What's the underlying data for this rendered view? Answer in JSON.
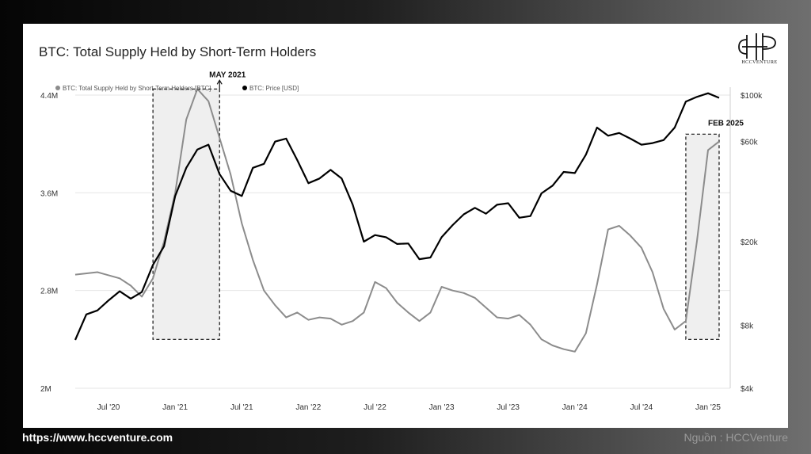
{
  "title": "BTC: Total Supply Held by Short-Term Holders",
  "logo": {
    "text": "HCCVENTURE",
    "icon": "hcc-monogram-icon"
  },
  "footer": {
    "url": "https://www.hccventure.com",
    "source": "Nguồn : HCCVenture"
  },
  "chart_data": {
    "type": "line",
    "title": "BTC: Total Supply Held by Short-Term Holders",
    "legend_position": "top-left",
    "grid": true,
    "x_range": [
      "2020-04",
      "2025-03"
    ],
    "x_ticks": [
      "Jul '20",
      "Jan '21",
      "Jul '21",
      "Jan '22",
      "Jul '22",
      "Jan '23",
      "Jul '23",
      "Jan '24",
      "Jul '24",
      "Jan '25"
    ],
    "y_left": {
      "ticks": [
        "2M",
        "2.8M",
        "3.6M",
        "4.4M"
      ],
      "tick_values": [
        2.0,
        2.8,
        3.6,
        4.4
      ],
      "range": [
        2.0,
        4.4
      ],
      "scale": "linear"
    },
    "y_right": {
      "ticks": [
        "$4k",
        "$8k",
        "$20k",
        "$60k",
        "$100k"
      ],
      "tick_values": [
        4000,
        8000,
        20000,
        60000,
        100000
      ],
      "range": [
        4000,
        100000
      ],
      "scale": "log"
    },
    "series": [
      {
        "name": "BTC: Total Supply Held by Short-Term Holders [BTC]",
        "axis": "left",
        "color": "#8c8c8c",
        "x": [
          "2020-04",
          "2020-06",
          "2020-08",
          "2020-09",
          "2020-10",
          "2020-11",
          "2020-12",
          "2021-01",
          "2021-02",
          "2021-03",
          "2021-04",
          "2021-05",
          "2021-06",
          "2021-07",
          "2021-08",
          "2021-09",
          "2021-10",
          "2021-11",
          "2021-12",
          "2022-01",
          "2022-02",
          "2022-03",
          "2022-04",
          "2022-05",
          "2022-06",
          "2022-07",
          "2022-08",
          "2022-09",
          "2022-10",
          "2022-11",
          "2022-12",
          "2023-01",
          "2023-02",
          "2023-03",
          "2023-04",
          "2023-05",
          "2023-06",
          "2023-07",
          "2023-08",
          "2023-09",
          "2023-10",
          "2023-11",
          "2023-12",
          "2024-01",
          "2024-02",
          "2024-03",
          "2024-04",
          "2024-05",
          "2024-06",
          "2024-07",
          "2024-08",
          "2024-09",
          "2024-10",
          "2024-11",
          "2024-12",
          "2025-01",
          "2025-02"
        ],
        "values": [
          2.93,
          2.95,
          2.9,
          2.84,
          2.75,
          2.9,
          3.2,
          3.6,
          4.2,
          4.45,
          4.35,
          4.05,
          3.75,
          3.35,
          3.05,
          2.8,
          2.68,
          2.58,
          2.62,
          2.56,
          2.58,
          2.57,
          2.52,
          2.55,
          2.62,
          2.87,
          2.82,
          2.7,
          2.62,
          2.55,
          2.62,
          2.83,
          2.8,
          2.78,
          2.74,
          2.66,
          2.58,
          2.57,
          2.6,
          2.52,
          2.4,
          2.35,
          2.32,
          2.3,
          2.45,
          2.85,
          3.3,
          3.33,
          3.25,
          3.15,
          2.95,
          2.65,
          2.48,
          2.55,
          3.2,
          3.95,
          4.02
        ]
      },
      {
        "name": "BTC: Price [USD]",
        "axis": "right",
        "color": "#000000",
        "x": [
          "2020-04",
          "2020-05",
          "2020-06",
          "2020-07",
          "2020-08",
          "2020-09",
          "2020-10",
          "2020-11",
          "2020-12",
          "2021-01",
          "2021-02",
          "2021-03",
          "2021-04",
          "2021-05",
          "2021-06",
          "2021-07",
          "2021-08",
          "2021-09",
          "2021-10",
          "2021-11",
          "2021-12",
          "2022-01",
          "2022-02",
          "2022-03",
          "2022-04",
          "2022-05",
          "2022-06",
          "2022-07",
          "2022-08",
          "2022-09",
          "2022-10",
          "2022-11",
          "2022-12",
          "2023-01",
          "2023-02",
          "2023-03",
          "2023-04",
          "2023-05",
          "2023-06",
          "2023-07",
          "2023-08",
          "2023-09",
          "2023-10",
          "2023-11",
          "2023-12",
          "2024-01",
          "2024-02",
          "2024-03",
          "2024-04",
          "2024-05",
          "2024-06",
          "2024-07",
          "2024-08",
          "2024-09",
          "2024-10",
          "2024-11",
          "2024-12",
          "2025-01",
          "2025-02"
        ],
        "values": [
          6800,
          9000,
          9400,
          10500,
          11600,
          10700,
          11500,
          15500,
          19000,
          33000,
          45000,
          55000,
          58000,
          42000,
          35000,
          33000,
          45000,
          47000,
          60000,
          62000,
          49000,
          38000,
          40000,
          44000,
          40000,
          30000,
          20000,
          21500,
          21000,
          19500,
          19600,
          16500,
          16800,
          21000,
          24000,
          27000,
          29000,
          27200,
          30000,
          30500,
          26000,
          26500,
          34000,
          37000,
          43000,
          42500,
          52000,
          70000,
          64000,
          66000,
          62000,
          58000,
          59000,
          61000,
          70000,
          93000,
          98000,
          102000,
          97000
        ]
      }
    ],
    "annotations": [
      {
        "label": "MAY 2021",
        "x_start": "2020-11",
        "x_end": "2021-05",
        "y_start": 2.4,
        "y_end": 4.45,
        "style": "dashed-box"
      },
      {
        "label": "FEB 2025",
        "x_start": "2024-11",
        "x_end": "2025-02",
        "y_start": 2.4,
        "y_end": 4.08,
        "style": "dashed-box"
      }
    ]
  }
}
